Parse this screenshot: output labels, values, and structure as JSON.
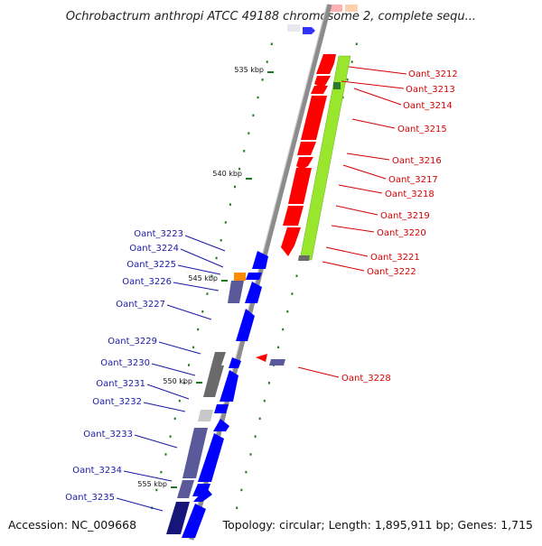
{
  "header": {
    "title": "Ochrobactrum anthropi ATCC 49188 chromosome 2, complete sequ..."
  },
  "footer": {
    "accession": "Accession: NC_009668",
    "topology": "Topology: circular; Length: 1,895,911 bp; Genes: 1,715"
  },
  "ticks": [
    {
      "label": "535 kbp"
    },
    {
      "label": "540 kbp"
    },
    {
      "label": "545 kbp"
    },
    {
      "label": "550 kbp"
    },
    {
      "label": "555 kbp"
    }
  ],
  "genes_forward": [
    {
      "label": "Oant_3212",
      "color": "#ff0000"
    },
    {
      "label": "Oant_3213",
      "color": "#ff0000"
    },
    {
      "label": "Oant_3214",
      "color": "#ff0000"
    },
    {
      "label": "Oant_3215",
      "color": "#ff0000"
    },
    {
      "label": "Oant_3216",
      "color": "#ff0000"
    },
    {
      "label": "Oant_3217",
      "color": "#ff0000"
    },
    {
      "label": "Oant_3218",
      "color": "#ff0000"
    },
    {
      "label": "Oant_3219",
      "color": "#ff0000"
    },
    {
      "label": "Oant_3220",
      "color": "#ff0000"
    },
    {
      "label": "Oant_3221",
      "color": "#ff0000"
    },
    {
      "label": "Oant_3222",
      "color": "#ff0000"
    },
    {
      "label": "Oant_3228",
      "color": "#ff0000"
    }
  ],
  "genes_reverse": [
    {
      "label": "Oant_3223",
      "color": "#0000ff"
    },
    {
      "label": "Oant_3224",
      "color": "#0000ff"
    },
    {
      "label": "Oant_3225",
      "color": "#0000ff"
    },
    {
      "label": "Oant_3226",
      "color": "#0000ff"
    },
    {
      "label": "Oant_3227",
      "color": "#0000ff"
    },
    {
      "label": "Oant_3229",
      "color": "#0000ff"
    },
    {
      "label": "Oant_3230",
      "color": "#0000ff"
    },
    {
      "label": "Oant_3231",
      "color": "#0000ff"
    },
    {
      "label": "Oant_3232",
      "color": "#0000ff"
    },
    {
      "label": "Oant_3233",
      "color": "#0000ff"
    },
    {
      "label": "Oant_3234",
      "color": "#0000ff"
    },
    {
      "label": "Oant_3235",
      "color": "#0000ff"
    }
  ],
  "colors": {
    "backbone": "#8c8c8c",
    "forward_cds": "#ff0000",
    "reverse_cds": "#0000ff",
    "gc_plot": "#99e62e",
    "gc_dark": "#6a6a6a",
    "reverse_shade": "#5a5a9a",
    "tick": "#1f7a1f",
    "accent_orange": "#ff8c00"
  }
}
